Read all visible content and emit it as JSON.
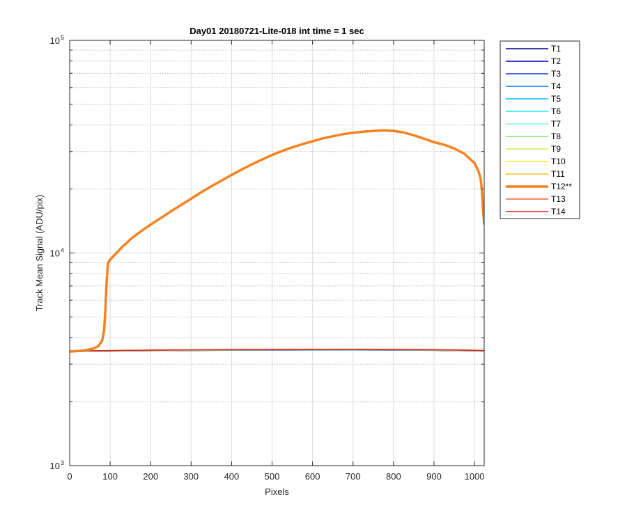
{
  "chart_data": {
    "type": "line",
    "title": "Day01 20180721-Lite-018 int time = 1 sec",
    "xlabel": "Pixels",
    "ylabel": "Track Mean Signal (ADU/pix)",
    "xlim": [
      0,
      1024
    ],
    "ylim": [
      1000,
      100000
    ],
    "yscale": "log",
    "grid": true,
    "legend_position": "outside-right",
    "x_ticks": [
      0,
      100,
      200,
      300,
      400,
      500,
      600,
      700,
      800,
      900,
      1000
    ],
    "y_ticks": [
      {
        "value": 1000,
        "base": "10",
        "exponent": "3"
      },
      {
        "value": 10000,
        "base": "10",
        "exponent": "4"
      },
      {
        "value": 100000,
        "base": "10",
        "exponent": "5"
      }
    ],
    "baseline_x": [
      0,
      100,
      200,
      300,
      400,
      500,
      600,
      700,
      800,
      900,
      1000,
      1024
    ],
    "series": [
      {
        "name": "T1",
        "color": "#000080",
        "y": [
          3440,
          3455,
          3470,
          3480,
          3488,
          3494,
          3497,
          3498,
          3494,
          3485,
          3465,
          3455
        ]
      },
      {
        "name": "T2",
        "color": "#0000c8",
        "y": [
          3442,
          3457,
          3472,
          3482,
          3490,
          3496,
          3499,
          3500,
          3496,
          3487,
          3467,
          3457
        ]
      },
      {
        "name": "T3",
        "color": "#0b3cf0",
        "y": [
          3444,
          3459,
          3474,
          3484,
          3492,
          3498,
          3501,
          3502,
          3498,
          3489,
          3469,
          3459
        ]
      },
      {
        "name": "T4",
        "color": "#0080ff",
        "y": [
          3446,
          3461,
          3476,
          3486,
          3494,
          3500,
          3503,
          3504,
          3500,
          3491,
          3471,
          3461
        ]
      },
      {
        "name": "T5",
        "color": "#00bfff",
        "y": [
          3448,
          3463,
          3478,
          3488,
          3496,
          3502,
          3505,
          3506,
          3502,
          3493,
          3473,
          3463
        ]
      },
      {
        "name": "T6",
        "color": "#10ecea",
        "y": [
          3450,
          3465,
          3480,
          3490,
          3498,
          3504,
          3507,
          3508,
          3504,
          3495,
          3475,
          3465
        ]
      },
      {
        "name": "T7",
        "color": "#7fffd4",
        "y": [
          3452,
          3467,
          3482,
          3492,
          3500,
          3506,
          3509,
          3510,
          3506,
          3497,
          3477,
          3467
        ]
      },
      {
        "name": "T8",
        "color": "#7fe87f",
        "y": [
          3454,
          3469,
          3484,
          3494,
          3502,
          3508,
          3511,
          3512,
          3508,
          3499,
          3479,
          3469
        ]
      },
      {
        "name": "T9",
        "color": "#c8f050",
        "y": [
          3456,
          3471,
          3486,
          3496,
          3504,
          3510,
          3513,
          3514,
          3510,
          3501,
          3481,
          3471
        ]
      },
      {
        "name": "T10",
        "color": "#f5f020",
        "y": [
          3458,
          3473,
          3488,
          3498,
          3506,
          3512,
          3515,
          3516,
          3512,
          3503,
          3483,
          3473
        ]
      },
      {
        "name": "T11",
        "color": "#f0c020",
        "y": [
          3460,
          3475,
          3490,
          3500,
          3508,
          3514,
          3517,
          3518,
          3514,
          3505,
          3485,
          3475
        ]
      },
      {
        "name": "T12**",
        "color": "#f5821f",
        "emphasized": true,
        "x": [
          0,
          20,
          40,
          60,
          70,
          80,
          85,
          88,
          90,
          93,
          95,
          100,
          110,
          120,
          130,
          140,
          150,
          160,
          170,
          180,
          190,
          200,
          225,
          250,
          275,
          300,
          325,
          350,
          375,
          400,
          425,
          450,
          475,
          500,
          525,
          550,
          575,
          600,
          625,
          650,
          675,
          700,
          725,
          750,
          775,
          800,
          825,
          850,
          875,
          900,
          925,
          950,
          975,
          1000,
          1010,
          1015,
          1018,
          1020,
          1022,
          1024
        ],
        "y": [
          3440,
          3460,
          3490,
          3560,
          3640,
          3850,
          4300,
          5300,
          6500,
          8200,
          9000,
          9300,
          9750,
          10200,
          10700,
          11100,
          11600,
          12000,
          12400,
          12800,
          13200,
          13600,
          14600,
          15700,
          16800,
          18000,
          19300,
          20600,
          21900,
          23300,
          24700,
          26100,
          27500,
          28900,
          30200,
          31400,
          32500,
          33500,
          34600,
          35400,
          36200,
          36800,
          37200,
          37500,
          37700,
          37500,
          36900,
          35800,
          34500,
          33200,
          32300,
          31000,
          29300,
          26500,
          24200,
          22500,
          20000,
          17500,
          15300,
          13700
        ]
      },
      {
        "name": "T13",
        "color": "#f55a2d",
        "y": [
          3462,
          3477,
          3492,
          3502,
          3510,
          3516,
          3519,
          3520,
          3516,
          3507,
          3487,
          3477
        ]
      },
      {
        "name": "T14",
        "color": "#e61e0f",
        "y": [
          3464,
          3479,
          3494,
          3504,
          3512,
          3518,
          3521,
          3522,
          3518,
          3509,
          3489,
          3479
        ]
      }
    ]
  }
}
